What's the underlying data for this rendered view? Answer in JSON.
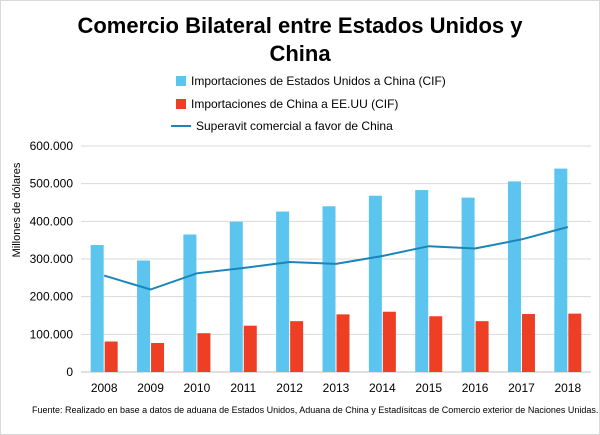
{
  "chart_data": {
    "type": "bar",
    "title_lines": [
      "Comercio Bilateral entre Estados  Unidos y",
      "China"
    ],
    "ylabel": "Millones de dólares",
    "xlabel": "",
    "categories": [
      "2008",
      "2009",
      "2010",
      "2011",
      "2012",
      "2013",
      "2014",
      "2015",
      "2016",
      "2017",
      "2018"
    ],
    "ylim": [
      0,
      600000
    ],
    "yticks": [
      0,
      100000,
      200000,
      300000,
      400000,
      500000,
      600000
    ],
    "ytick_labels": [
      "0",
      "100.000",
      "200.000",
      "300.000",
      "400.000",
      "500.000",
      "600.000"
    ],
    "grid": true,
    "legend_position": "top",
    "series": [
      {
        "name": "Importaciones de Estados Unidos a China (CIF)",
        "kind": "bar",
        "color": "#5bc5ef",
        "values": [
          337000,
          296000,
          365000,
          399000,
          426000,
          440000,
          468000,
          483000,
          463000,
          506000,
          540000
        ]
      },
      {
        "name": "Importaciones de China a EE.UU (CIF)",
        "kind": "bar",
        "color": "#ee3f25",
        "values": [
          81000,
          77000,
          103000,
          123000,
          135000,
          153000,
          160000,
          148000,
          135000,
          154000,
          155000
        ]
      },
      {
        "name": "Superavit comercial a favor de China",
        "kind": "line",
        "color": "#1a85b8",
        "values": [
          256000,
          219000,
          262000,
          276000,
          292000,
          287000,
          308000,
          334000,
          328000,
          352000,
          385000
        ]
      }
    ]
  },
  "source_note": "Fuente: Realizado en base a datos de aduana de Estados Unidos, Aduana de China y Estadísitcas de Comercio exterior de Naciones Unidas."
}
